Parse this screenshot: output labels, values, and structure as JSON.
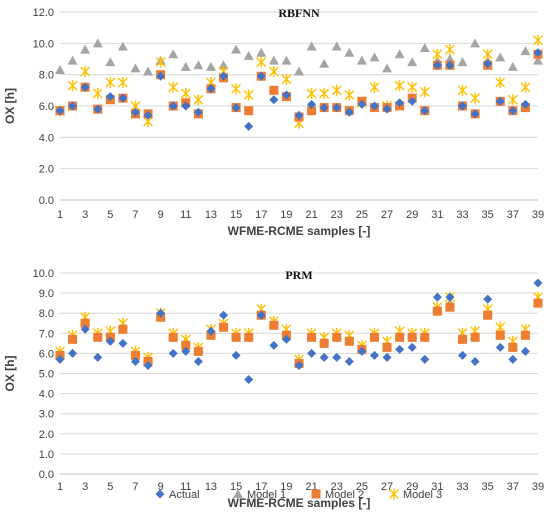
{
  "colors": {
    "Actual": "#4472C4",
    "Model 1": "#A5A5A5",
    "Model 2": "#ED7D31",
    "Model 3": "#FFC000",
    "grid": "#D9D9D9",
    "axis": "#BFBFBF"
  },
  "legend": {
    "position": "bottom",
    "items": [
      {
        "name": "Actual",
        "marker": "diamond"
      },
      {
        "name": "Model 1",
        "marker": "triangle"
      },
      {
        "name": "Model 2",
        "marker": "square"
      },
      {
        "name": "Model 3",
        "marker": "x-star"
      }
    ]
  },
  "chart_data": [
    {
      "type": "scatter",
      "title": "RBFNN",
      "xlabel": "WFME-RCME samples [-]",
      "ylabel": "OX [h]",
      "xlim": [
        1,
        39
      ],
      "ylim": [
        0,
        12
      ],
      "y_ticks": [
        "0.0",
        "2.0",
        "4.0",
        "6.0",
        "8.0",
        "10.0",
        "12.0"
      ],
      "x_ticks": [
        "1",
        "3",
        "5",
        "7",
        "9",
        "11",
        "13",
        "15",
        "17",
        "19",
        "21",
        "23",
        "25",
        "27",
        "29",
        "31",
        "33",
        "35",
        "37",
        "39"
      ],
      "grid": true,
      "x": [
        1,
        2,
        3,
        4,
        5,
        6,
        7,
        8,
        9,
        10,
        11,
        12,
        13,
        14,
        15,
        16,
        17,
        18,
        19,
        20,
        21,
        22,
        23,
        24,
        25,
        26,
        27,
        28,
        29,
        30,
        31,
        32,
        33,
        34,
        35,
        36,
        37,
        38,
        39
      ],
      "series": [
        {
          "name": "Actual",
          "values": [
            5.7,
            6.0,
            7.2,
            5.8,
            6.6,
            6.5,
            5.6,
            5.4,
            7.9,
            6.0,
            6.0,
            5.6,
            7.1,
            7.9,
            5.9,
            4.7,
            7.9,
            6.4,
            6.7,
            5.4,
            6.1,
            5.9,
            5.9,
            5.6,
            6.1,
            6.0,
            5.8,
            6.2,
            6.3,
            5.7,
            8.6,
            8.6,
            6.0,
            5.5,
            8.7,
            6.3,
            5.7,
            6.1,
            9.4
          ]
        },
        {
          "name": "Model 1",
          "values": [
            8.3,
            8.9,
            9.6,
            10.0,
            8.8,
            9.8,
            8.4,
            8.2,
            8.9,
            9.3,
            8.5,
            8.6,
            8.5,
            8.6,
            9.6,
            9.2,
            9.4,
            8.9,
            8.9,
            8.2,
            9.8,
            8.7,
            9.8,
            9.4,
            8.9,
            9.1,
            8.4,
            9.3,
            8.8,
            9.7,
            8.9,
            9.0,
            8.8,
            10.0,
            8.9,
            9.1,
            8.5,
            9.5,
            8.9
          ]
        },
        {
          "name": "Model 2",
          "values": [
            5.7,
            6.0,
            7.2,
            5.8,
            6.4,
            6.5,
            5.5,
            5.5,
            8.0,
            6.0,
            6.2,
            5.5,
            7.1,
            7.8,
            5.9,
            5.7,
            7.9,
            7.0,
            6.6,
            5.3,
            5.7,
            5.9,
            5.9,
            5.7,
            6.3,
            5.9,
            5.9,
            6.0,
            6.5,
            5.7,
            8.6,
            8.6,
            6.0,
            5.5,
            8.6,
            6.3,
            5.7,
            5.9,
            9.3
          ]
        },
        {
          "name": "Model 3",
          "values": [
            5.7,
            7.3,
            8.2,
            6.8,
            7.5,
            7.5,
            6.0,
            5.0,
            8.8,
            7.2,
            6.8,
            6.4,
            7.5,
            8.2,
            7.1,
            6.7,
            8.8,
            8.2,
            7.7,
            4.9,
            6.8,
            6.8,
            7.0,
            6.7,
            6.2,
            7.2,
            6.0,
            7.3,
            7.2,
            6.9,
            9.3,
            9.6,
            7.0,
            6.5,
            9.3,
            7.5,
            6.4,
            7.2,
            10.2
          ]
        }
      ]
    },
    {
      "type": "scatter",
      "title": "PRM",
      "xlabel": "WFME-RCME samples [-]",
      "ylabel": "OX [h]",
      "xlim": [
        1,
        39
      ],
      "ylim": [
        0,
        10
      ],
      "y_ticks": [
        "0.0",
        "1.0",
        "2.0",
        "3.0",
        "4.0",
        "5.0",
        "6.0",
        "7.0",
        "8.0",
        "9.0",
        "10.0"
      ],
      "x_ticks": [
        "1",
        "3",
        "5",
        "7",
        "9",
        "11",
        "13",
        "15",
        "17",
        "19",
        "21",
        "23",
        "25",
        "27",
        "29",
        "31",
        "33",
        "35",
        "37",
        "39"
      ],
      "grid": true,
      "x": [
        1,
        2,
        3,
        4,
        5,
        6,
        7,
        8,
        9,
        10,
        11,
        12,
        13,
        14,
        15,
        16,
        17,
        18,
        19,
        20,
        21,
        22,
        23,
        24,
        25,
        26,
        27,
        28,
        29,
        30,
        31,
        32,
        33,
        34,
        35,
        36,
        37,
        38,
        39
      ],
      "series": [
        {
          "name": "Actual",
          "values": [
            5.7,
            6.0,
            7.2,
            5.8,
            6.6,
            6.5,
            5.6,
            5.4,
            8.0,
            6.0,
            6.1,
            5.6,
            7.1,
            7.9,
            5.9,
            4.7,
            7.9,
            6.4,
            6.7,
            5.4,
            6.0,
            5.8,
            5.8,
            5.6,
            6.1,
            5.9,
            5.8,
            6.2,
            6.3,
            5.7,
            8.8,
            8.8,
            5.9,
            5.6,
            8.7,
            6.3,
            5.7,
            6.1,
            9.5
          ]
        },
        {
          "name": "Model 1",
          "values": [
            6.0,
            6.8,
            7.6,
            6.9,
            6.9,
            7.3,
            6.0,
            5.7,
            8.0,
            6.9,
            6.6,
            6.2,
            7.0,
            7.4,
            6.9,
            6.9,
            8.0,
            7.5,
            7.0,
            5.6,
            6.9,
            6.6,
            6.9,
            6.7,
            6.3,
            6.9,
            6.4,
            6.9,
            6.9,
            6.9,
            8.2,
            8.5,
            6.8,
            6.9,
            8.0,
            7.0,
            6.4,
            7.0,
            8.6
          ]
        },
        {
          "name": "Model 2",
          "values": [
            5.9,
            6.7,
            7.5,
            6.8,
            6.8,
            7.2,
            5.9,
            5.6,
            7.8,
            6.8,
            6.4,
            6.1,
            6.9,
            7.3,
            6.8,
            6.8,
            7.9,
            7.4,
            6.9,
            5.5,
            6.8,
            6.5,
            6.8,
            6.6,
            6.2,
            6.8,
            6.3,
            6.8,
            6.8,
            6.8,
            8.1,
            8.3,
            6.7,
            6.8,
            7.9,
            6.9,
            6.3,
            6.9,
            8.5
          ]
        },
        {
          "name": "Model 3",
          "values": [
            6.1,
            6.9,
            7.8,
            7.0,
            7.1,
            7.5,
            6.1,
            5.8,
            8.0,
            7.0,
            6.7,
            6.3,
            7.2,
            7.5,
            7.0,
            7.0,
            8.2,
            7.6,
            7.2,
            5.7,
            7.0,
            6.8,
            7.0,
            6.9,
            6.4,
            7.0,
            6.6,
            7.1,
            7.0,
            7.0,
            8.3,
            8.8,
            7.0,
            7.1,
            8.2,
            7.3,
            6.6,
            7.2,
            8.8
          ]
        }
      ]
    }
  ]
}
